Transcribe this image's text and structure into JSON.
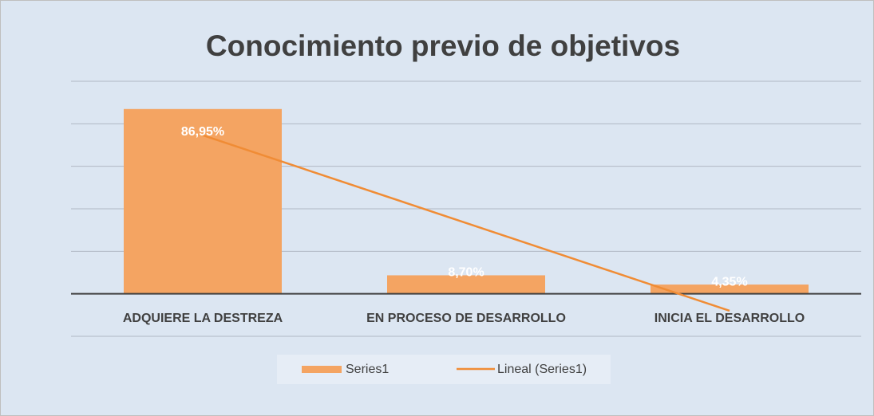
{
  "chart_data": {
    "type": "bar",
    "title": "Conocimiento previo de objetivos",
    "categories": [
      "ADQUIERE LA DESTREZA",
      "EN PROCESO DE DESARROLLO",
      "INICIA EL DESARROLLO"
    ],
    "series": [
      {
        "name": "Series1",
        "color": "#f4a462",
        "values": [
          86.95,
          8.7,
          4.35
        ],
        "value_labels": [
          "86,95%",
          "8,70%",
          "4,35%"
        ]
      }
    ],
    "trendline": {
      "name": "Lineal (Series1)",
      "color": "#f08c35",
      "type": "linear"
    },
    "ylim": [
      -20,
      100
    ],
    "yticks": [
      -20,
      0,
      20,
      40,
      60,
      80,
      100
    ],
    "grid": true,
    "legend": "bottom"
  }
}
